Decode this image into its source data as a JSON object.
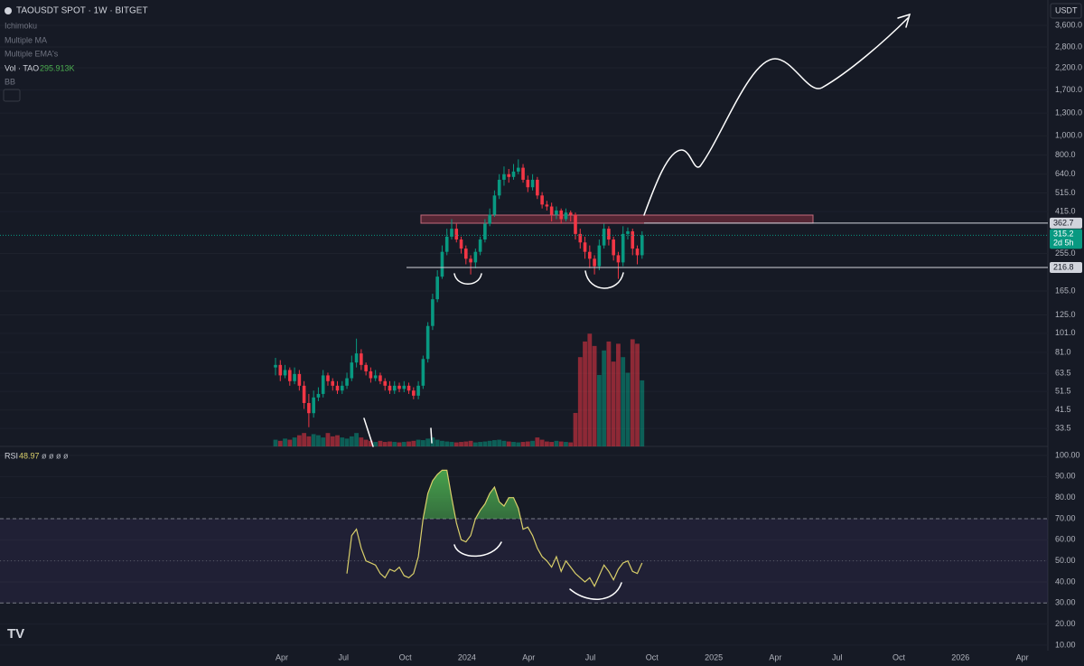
{
  "header": {
    "symbol": "TAOUSDT SPOT · 1W · BITGET",
    "indicators": [
      "Ichimoku",
      "Multiple MA",
      "Multiple EMA's"
    ],
    "vol_label": "Vol · TAO",
    "vol_value": "295.913K",
    "bb": "BB",
    "currency": "USDT",
    "countdown": "2d 5h"
  },
  "chart_data": {
    "type": "candlestick",
    "log_scale": true,
    "grid": true,
    "up_color": "#089981",
    "down_color": "#f23645",
    "open": [
      68,
      70,
      62,
      66,
      58,
      63,
      55,
      45,
      40,
      48,
      50,
      62,
      58,
      55,
      52,
      55,
      60,
      72,
      80,
      70,
      65,
      60,
      62,
      58,
      55,
      52,
      55,
      53,
      55,
      52,
      49,
      55,
      75,
      110,
      150,
      195,
      260,
      310,
      340,
      300,
      270,
      240,
      230,
      260,
      300,
      360,
      400,
      500,
      600,
      640,
      620,
      660,
      690,
      600,
      550,
      600,
      500,
      450,
      440,
      400,
      420,
      380,
      410,
      400,
      320,
      290,
      260,
      240,
      220,
      280,
      340,
      300,
      250,
      230,
      320,
      330,
      270,
      250
    ],
    "high": [
      76,
      74,
      70,
      68,
      68,
      66,
      58,
      50,
      52,
      54,
      66,
      64,
      60,
      58,
      58,
      64,
      78,
      95,
      84,
      72,
      68,
      66,
      64,
      60,
      58,
      58,
      57,
      58,
      57,
      54,
      58,
      78,
      115,
      160,
      210,
      280,
      340,
      380,
      360,
      310,
      280,
      250,
      270,
      310,
      380,
      430,
      530,
      640,
      700,
      680,
      720,
      760,
      720,
      630,
      640,
      620,
      520,
      470,
      460,
      440,
      430,
      430,
      420,
      410,
      340,
      310,
      280,
      250,
      300,
      360,
      350,
      310,
      260,
      350,
      345,
      340,
      280,
      330
    ],
    "low": [
      62,
      58,
      60,
      55,
      56,
      52,
      42,
      34,
      38,
      46,
      48,
      55,
      52,
      50,
      50,
      53,
      58,
      68,
      66,
      62,
      57,
      58,
      56,
      52,
      50,
      50,
      51,
      51,
      50,
      47,
      47,
      53,
      72,
      105,
      145,
      190,
      250,
      300,
      290,
      255,
      225,
      200,
      215,
      250,
      290,
      350,
      390,
      480,
      560,
      580,
      600,
      640,
      580,
      520,
      530,
      480,
      430,
      420,
      370,
      380,
      360,
      370,
      370,
      300,
      270,
      240,
      215,
      200,
      210,
      270,
      280,
      235,
      190,
      220,
      300,
      250,
      225,
      240
    ],
    "close": [
      70,
      62,
      66,
      58,
      63,
      55,
      45,
      40,
      48,
      50,
      62,
      58,
      55,
      52,
      55,
      60,
      72,
      80,
      70,
      65,
      60,
      62,
      58,
      55,
      52,
      55,
      53,
      55,
      52,
      49,
      55,
      75,
      110,
      150,
      195,
      260,
      310,
      340,
      300,
      270,
      240,
      230,
      260,
      300,
      360,
      400,
      500,
      600,
      640,
      620,
      660,
      690,
      600,
      550,
      600,
      500,
      450,
      440,
      400,
      420,
      380,
      410,
      400,
      320,
      290,
      260,
      240,
      220,
      280,
      340,
      300,
      250,
      230,
      320,
      330,
      270,
      250,
      315.2
    ],
    "ylim": [
      27.2,
      4830
    ],
    "yticks": [
      {
        "value": 3600,
        "label": "3,600.0"
      },
      {
        "value": 2800,
        "label": "2,800.0"
      },
      {
        "value": 2200,
        "label": "2,200.0"
      },
      {
        "value": 1700,
        "label": "1,700.0"
      },
      {
        "value": 1300,
        "label": "1,300.0"
      },
      {
        "value": 1000,
        "label": "1,000.0"
      },
      {
        "value": 800,
        "label": "800.0"
      },
      {
        "value": 640,
        "label": "640.0"
      },
      {
        "value": 515,
        "label": "515.0"
      },
      {
        "value": 415,
        "label": "415.0"
      },
      {
        "value": 255,
        "label": "255.0"
      },
      {
        "value": 165,
        "label": "165.0"
      },
      {
        "value": 125,
        "label": "125.0"
      },
      {
        "value": 101,
        "label": "101.0"
      },
      {
        "value": 81,
        "label": "81.0"
      },
      63.5,
      51.5,
      41.5,
      33.5
    ],
    "levels": [
      362.7,
      216.8
    ],
    "xticks": [
      "Apr",
      "Jul",
      "Oct",
      "2024",
      "Apr",
      "Jul",
      "Oct",
      "2025",
      "Apr",
      "Jul",
      "Oct",
      "2026",
      "Apr"
    ],
    "volume": {
      "ylim": [
        0,
        2000
      ],
      "values": [
        30,
        25,
        35,
        30,
        40,
        50,
        60,
        45,
        55,
        50,
        40,
        60,
        45,
        50,
        40,
        35,
        45,
        60,
        40,
        30,
        25,
        20,
        25,
        20,
        22,
        20,
        18,
        20,
        22,
        25,
        30,
        28,
        35,
        40,
        30,
        25,
        22,
        20,
        18,
        20,
        22,
        25,
        18,
        20,
        22,
        25,
        28,
        30,
        25,
        22,
        20,
        18,
        20,
        22,
        25,
        40,
        30,
        22,
        20,
        25,
        22,
        20,
        18,
        150,
        400,
        470,
        505,
        450,
        320,
        430,
        470,
        380,
        460,
        400,
        330,
        480,
        460,
        295.913
      ]
    },
    "rsi": {
      "name": "RSI",
      "color": "#d9cf6a",
      "symbols": "ø ø ø ø",
      "ylim": [
        7.4,
        104.3
      ],
      "band": [
        30,
        70
      ],
      "middle": 50,
      "yticks": [
        {
          "value": 100,
          "label": "100.00"
        },
        {
          "value": 90,
          "label": "90.00"
        },
        {
          "value": 80,
          "label": "80.00"
        },
        {
          "value": 70,
          "label": "70.00"
        },
        {
          "value": 60,
          "label": "60.00"
        },
        {
          "value": 50,
          "label": "50.00"
        },
        {
          "value": 40,
          "label": "40.00"
        },
        {
          "value": 30,
          "label": "30.00"
        },
        {
          "value": 20,
          "label": "20.00"
        },
        {
          "value": 10,
          "label": "10.00"
        }
      ],
      "values": [
        null,
        null,
        null,
        null,
        null,
        null,
        null,
        null,
        null,
        null,
        null,
        null,
        null,
        null,
        null,
        44,
        62,
        65,
        56,
        50,
        49,
        48,
        44,
        42,
        46,
        45,
        47,
        43,
        42,
        44,
        52,
        70,
        82,
        88,
        91,
        93,
        93,
        80,
        68,
        60,
        59,
        62,
        70,
        74,
        77,
        82,
        85,
        78,
        76,
        80,
        80,
        75,
        65,
        66,
        62,
        56,
        52,
        50,
        47,
        52,
        45,
        50,
        47,
        44,
        42,
        40,
        42,
        38,
        43,
        48,
        45,
        41,
        46,
        49,
        50,
        45,
        44,
        48.97
      ]
    }
  }
}
